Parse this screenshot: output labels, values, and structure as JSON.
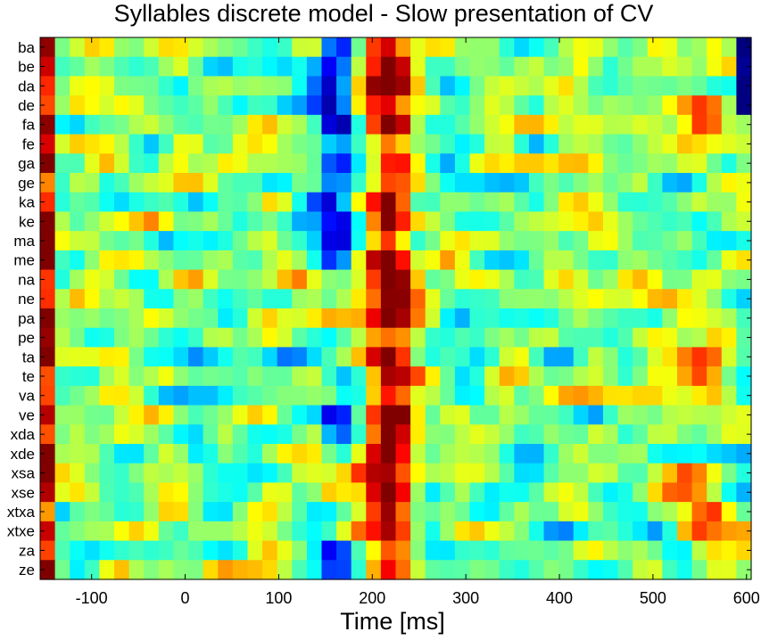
{
  "chart_data": {
    "type": "heatmap",
    "title": "Syllables discrete model - Slow presentation of CV",
    "xlabel": "Time [ms]",
    "ylabel": "",
    "rows": [
      "ba",
      "be",
      "da",
      "de",
      "fa",
      "fe",
      "ga",
      "ge",
      "ka",
      "ke",
      "ma",
      "me",
      "na",
      "ne",
      "pa",
      "pe",
      "ta",
      "te",
      "va",
      "ve",
      "xda",
      "xde",
      "xsa",
      "xse",
      "xtxa",
      "xtxe",
      "za",
      "ze"
    ],
    "x_ticks": [
      -100,
      0,
      100,
      200,
      300,
      400,
      500,
      600
    ],
    "xlim": [
      -155,
      605
    ],
    "colormap": "jet",
    "colormap_stops": [
      "#00008f",
      "#0000ff",
      "#00ffff",
      "#ffff00",
      "#ff0000",
      "#800000"
    ],
    "dominant_features": [
      {
        "description": "strong positive band",
        "x_range_ms": [
          195,
          245
        ],
        "rows": "all"
      },
      {
        "description": "negative band",
        "x_range_ms": [
          140,
          180
        ],
        "rows": "ba-me, ve, xda, za, ze"
      },
      {
        "description": "positive band",
        "x_range_ms": [
          520,
          595
        ],
        "rows": "de-fe, ne-va, xsa-xtxe"
      },
      {
        "description": "left edge strong positive",
        "x_range_ms": [
          -155,
          -145
        ],
        "rows": "all"
      },
      {
        "description": "right edge strong negative",
        "x_range_ms": [
          595,
          605
        ],
        "rows": "ba-de"
      }
    ]
  }
}
